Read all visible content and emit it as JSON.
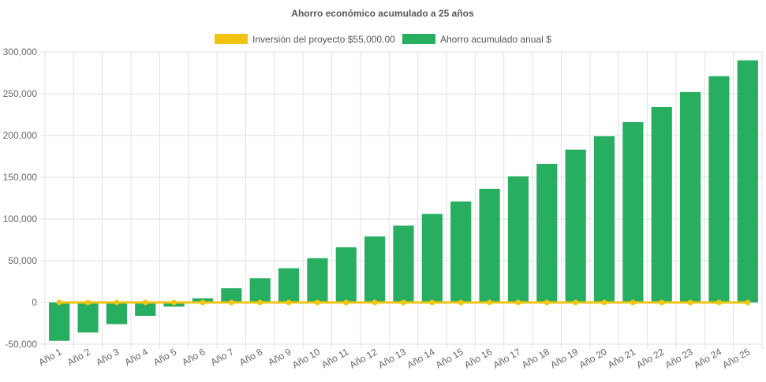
{
  "chart_data": {
    "type": "bar",
    "title": "Ahorro económico acumulado a 25 años",
    "categories": [
      "Año 1",
      "Año 2",
      "Año 3",
      "Año 4",
      "Año 5",
      "Año 6",
      "Año 7",
      "Año 8",
      "Año 9",
      "Año 10",
      "Año 11",
      "Año 12",
      "Año 13",
      "Año 14",
      "Año 15",
      "Año 16",
      "Año 17",
      "Año 18",
      "Año 19",
      "Año 20",
      "Año 21",
      "Año 22",
      "Año 23",
      "Año 24",
      "Año 25"
    ],
    "series": [
      {
        "name": "Inversión del proyecto $55,000.00",
        "kind": "line",
        "color": "#f1c40f",
        "values": [
          0,
          0,
          0,
          0,
          0,
          0,
          0,
          0,
          0,
          0,
          0,
          0,
          0,
          0,
          0,
          0,
          0,
          0,
          0,
          0,
          0,
          0,
          0,
          0,
          0
        ]
      },
      {
        "name": "Ahorro acumulado anual $",
        "kind": "bar",
        "color": "#27ae60",
        "values": [
          -46000,
          -36000,
          -26000,
          -16000,
          -5000,
          5000,
          17000,
          29000,
          41000,
          53000,
          66000,
          79000,
          92000,
          106000,
          121000,
          136000,
          151000,
          166000,
          183000,
          199000,
          216000,
          234000,
          252000,
          271000,
          290000
        ]
      }
    ],
    "ylim": [
      -50000,
      300000
    ],
    "yticks": [
      -50000,
      0,
      50000,
      100000,
      150000,
      200000,
      250000,
      300000
    ],
    "ytick_labels": [
      "-50,000",
      "0",
      "50,000",
      "100,000",
      "150,000",
      "200,000",
      "250,000",
      "300,000"
    ],
    "xlabel": "",
    "ylabel": "",
    "grid": true,
    "legend_position": "top"
  }
}
